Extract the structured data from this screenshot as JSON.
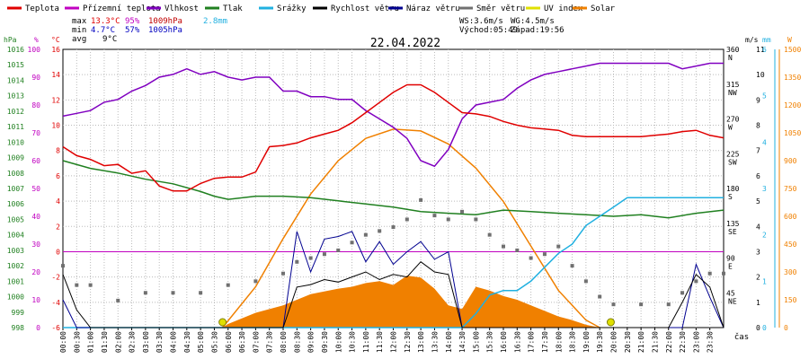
{
  "chart_data": {
    "type": "line",
    "title": "22.04.2022",
    "xlabel": "čas",
    "x_ticks": [
      "00:00",
      "00:30",
      "01:00",
      "01:30",
      "02:00",
      "02:30",
      "03:00",
      "03:30",
      "04:00",
      "04:30",
      "05:00",
      "05:30",
      "06:00",
      "06:30",
      "07:00",
      "07:30",
      "08:00",
      "08:30",
      "09:00",
      "09:30",
      "10:00",
      "10:30",
      "11:00",
      "11:30",
      "12:00",
      "12:30",
      "13:00",
      "13:30",
      "14:00",
      "14:30",
      "15:00",
      "15:30",
      "16:00",
      "16:30",
      "17:00",
      "17:30",
      "18:00",
      "18:30",
      "19:00",
      "19:30",
      "20:00",
      "20:30",
      "21:00",
      "21:30",
      "22:00",
      "22:30",
      "23:00",
      "23:30"
    ],
    "legend": [
      {
        "name": "Teplota",
        "color": "#e00000"
      },
      {
        "name": "Přízemní teplota",
        "color": "#c000c0"
      },
      {
        "name": "Vlhkost",
        "color": "#8000c0"
      },
      {
        "name": "Tlak",
        "color": "#208020"
      },
      {
        "name": "Srážky",
        "color": "#20b0e0"
      },
      {
        "name": "Rychlost větru",
        "color": "#000000"
      },
      {
        "name": "Náraz větru",
        "color": "#000090"
      },
      {
        "name": "Směr větru",
        "color": "#707070"
      },
      {
        "name": "UV index",
        "color": "#e0e000"
      },
      {
        "name": "Solar",
        "color": "#f08000"
      }
    ],
    "stats": {
      "max_label": "max",
      "min_label": "min",
      "avg_label": "avg",
      "temp_max": "13.3°C",
      "hum_max": "95%",
      "press_max": "1009hPa",
      "rain": "2.8mm",
      "temp_min": "4.7°C",
      "hum_min": "57%",
      "press_min": "1005hPa",
      "temp_avg": "9°C",
      "ws": "WS:3.6m/s",
      "wg": "WG:4.5m/s",
      "sunrise": "Východ:05:49",
      "sunset": "Západ:19:56"
    },
    "axes": {
      "hpa": {
        "unit": "hPa",
        "color": "#208020",
        "ticks": [
          1016,
          1015,
          1014,
          1013,
          1012,
          1011,
          1010,
          1009,
          1008,
          1007,
          1006,
          1005,
          1004,
          1003,
          1002,
          1001,
          1000,
          999,
          998
        ]
      },
      "pct": {
        "unit": "%",
        "color": "#c000c0",
        "ticks": [
          100,
          90,
          80,
          70,
          60,
          50,
          40,
          30,
          20,
          10,
          0
        ]
      },
      "temp": {
        "unit": "°C",
        "color": "#e00000",
        "ticks": [
          16,
          14,
          12,
          10,
          8,
          6,
          4,
          2,
          0,
          -2,
          -4,
          -6
        ]
      },
      "dir": {
        "ticks": [
          "360",
          "N",
          "315",
          "NW",
          "270",
          "W",
          "225",
          "SW",
          "180",
          "S",
          "135",
          "SE",
          "90",
          "E",
          "45",
          "NE"
        ]
      },
      "ms": {
        "unit": "m/s",
        "ticks": [
          11,
          10,
          9,
          8,
          7,
          6,
          5,
          4,
          3,
          2,
          1,
          0
        ]
      },
      "mm": {
        "unit": "mm",
        "color": "#20b0e0",
        "ticks": [
          6,
          5,
          4,
          3,
          2,
          1,
          0
        ]
      },
      "w": {
        "unit": "W",
        "color": "#f08000",
        "ticks": [
          1500,
          1350,
          1200,
          1050,
          900,
          750,
          600,
          450,
          300,
          150,
          0
        ]
      }
    },
    "series": {
      "temperature_c": [
        [
          0,
          8.3
        ],
        [
          0.5,
          7.6
        ],
        [
          1,
          7.3
        ],
        [
          1.5,
          6.8
        ],
        [
          2,
          6.9
        ],
        [
          2.5,
          6.2
        ],
        [
          3,
          6.4
        ],
        [
          3.5,
          5.2
        ],
        [
          4,
          4.8
        ],
        [
          4.5,
          4.8
        ],
        [
          5,
          5.4
        ],
        [
          5.5,
          5.8
        ],
        [
          6,
          5.9
        ],
        [
          6.5,
          5.9
        ],
        [
          7,
          6.3
        ],
        [
          7.5,
          8.3
        ],
        [
          8,
          8.4
        ],
        [
          8.5,
          8.6
        ],
        [
          9,
          9.0
        ],
        [
          9.5,
          9.3
        ],
        [
          10,
          9.6
        ],
        [
          10.5,
          10.2
        ],
        [
          11,
          11.0
        ],
        [
          11.5,
          11.8
        ],
        [
          12,
          12.6
        ],
        [
          12.5,
          13.2
        ],
        [
          13,
          13.2
        ],
        [
          13.5,
          12.6
        ],
        [
          14,
          11.8
        ],
        [
          14.5,
          11.0
        ],
        [
          15,
          10.9
        ],
        [
          15.5,
          10.7
        ],
        [
          16,
          10.3
        ],
        [
          16.5,
          10.0
        ],
        [
          17,
          9.8
        ],
        [
          17.5,
          9.7
        ],
        [
          18,
          9.6
        ],
        [
          18.5,
          9.2
        ],
        [
          19,
          9.1
        ],
        [
          19.5,
          9.1
        ],
        [
          20,
          9.1
        ],
        [
          20.5,
          9.1
        ],
        [
          21,
          9.1
        ],
        [
          21.5,
          9.2
        ],
        [
          22,
          9.3
        ],
        [
          22.5,
          9.5
        ],
        [
          23,
          9.6
        ],
        [
          23.5,
          9.2
        ],
        [
          24,
          9.0
        ]
      ],
      "humidity_pct": [
        [
          0,
          76
        ],
        [
          0.5,
          77
        ],
        [
          1,
          78
        ],
        [
          1.5,
          81
        ],
        [
          2,
          82
        ],
        [
          2.5,
          85
        ],
        [
          3,
          87
        ],
        [
          3.5,
          90
        ],
        [
          4,
          91
        ],
        [
          4.5,
          93
        ],
        [
          5,
          91
        ],
        [
          5.5,
          92
        ],
        [
          6,
          90
        ],
        [
          6.5,
          89
        ],
        [
          7,
          90
        ],
        [
          7.5,
          90
        ],
        [
          8,
          85
        ],
        [
          8.5,
          85
        ],
        [
          9,
          83
        ],
        [
          9.5,
          83
        ],
        [
          10,
          82
        ],
        [
          10.5,
          82
        ],
        [
          11,
          78
        ],
        [
          11.5,
          75
        ],
        [
          12,
          72
        ],
        [
          12.5,
          68
        ],
        [
          13,
          60
        ],
        [
          13.5,
          58
        ],
        [
          14,
          64
        ],
        [
          14.5,
          75
        ],
        [
          15,
          80
        ],
        [
          15.5,
          81
        ],
        [
          16,
          82
        ],
        [
          16.5,
          86
        ],
        [
          17,
          89
        ],
        [
          17.5,
          91
        ],
        [
          18,
          92
        ],
        [
          18.5,
          93
        ],
        [
          19,
          94
        ],
        [
          19.5,
          95
        ],
        [
          20,
          95
        ],
        [
          20.5,
          95
        ],
        [
          21,
          95
        ],
        [
          21.5,
          95
        ],
        [
          22,
          95
        ],
        [
          22.5,
          93
        ],
        [
          23,
          94
        ],
        [
          23.5,
          95
        ],
        [
          24,
          95
        ]
      ],
      "pressure_hpa": [
        [
          0,
          1008.8
        ],
        [
          1,
          1008.3
        ],
        [
          2,
          1008.0
        ],
        [
          3,
          1007.6
        ],
        [
          4,
          1007.3
        ],
        [
          5,
          1006.8
        ],
        [
          5.5,
          1006.5
        ],
        [
          6,
          1006.3
        ],
        [
          7,
          1006.5
        ],
        [
          8,
          1006.5
        ],
        [
          9,
          1006.4
        ],
        [
          10,
          1006.2
        ],
        [
          11,
          1006.0
        ],
        [
          12,
          1005.8
        ],
        [
          13,
          1005.5
        ],
        [
          14,
          1005.4
        ],
        [
          15,
          1005.3
        ],
        [
          16,
          1005.6
        ],
        [
          17,
          1005.5
        ],
        [
          18,
          1005.4
        ],
        [
          19,
          1005.3
        ],
        [
          20,
          1005.2
        ],
        [
          21,
          1005.3
        ],
        [
          22,
          1005.1
        ],
        [
          23,
          1005.4
        ],
        [
          24,
          1005.6
        ]
      ],
      "rain_mm": [
        [
          0,
          0
        ],
        [
          14.5,
          0
        ],
        [
          15,
          0.3
        ],
        [
          15.5,
          0.7
        ],
        [
          16,
          0.8
        ],
        [
          16.5,
          0.8
        ],
        [
          17,
          1.0
        ],
        [
          17.5,
          1.3
        ],
        [
          18,
          1.6
        ],
        [
          18.5,
          1.8
        ],
        [
          19,
          2.2
        ],
        [
          19.5,
          2.4
        ],
        [
          20,
          2.6
        ],
        [
          20.5,
          2.8
        ],
        [
          24,
          2.8
        ]
      ],
      "wind_speed_ms": [
        [
          0,
          2.1
        ],
        [
          0.5,
          0.7
        ],
        [
          1,
          0
        ],
        [
          8,
          0
        ],
        [
          8.5,
          1.6
        ],
        [
          9,
          1.7
        ],
        [
          9.5,
          1.9
        ],
        [
          10,
          1.8
        ],
        [
          10.5,
          2.0
        ],
        [
          11,
          2.2
        ],
        [
          11.5,
          1.9
        ],
        [
          12,
          2.1
        ],
        [
          12.5,
          2.0
        ],
        [
          13,
          2.6
        ],
        [
          13.5,
          2.2
        ],
        [
          14,
          2.1
        ],
        [
          14.5,
          0
        ],
        [
          22,
          0
        ],
        [
          22.5,
          1.0
        ],
        [
          23,
          2.1
        ],
        [
          23.5,
          1.6
        ],
        [
          24,
          0
        ]
      ],
      "wind_gust_ms": [
        [
          0,
          1.1
        ],
        [
          0.5,
          0
        ],
        [
          8,
          0
        ],
        [
          8.5,
          3.8
        ],
        [
          9,
          2.2
        ],
        [
          9.5,
          3.5
        ],
        [
          10,
          3.6
        ],
        [
          10.5,
          3.8
        ],
        [
          11,
          2.6
        ],
        [
          11.5,
          3.4
        ],
        [
          12,
          2.5
        ],
        [
          12.5,
          3.0
        ],
        [
          13,
          3.4
        ],
        [
          13.5,
          2.7
        ],
        [
          14,
          3.0
        ],
        [
          14.5,
          0
        ],
        [
          22.5,
          0
        ],
        [
          23,
          2.5
        ],
        [
          23.5,
          1.2
        ],
        [
          24,
          0
        ]
      ],
      "wind_dir_deg": [
        [
          0,
          80
        ],
        [
          0.5,
          55
        ],
        [
          1,
          55
        ],
        [
          2,
          35
        ],
        [
          3,
          45
        ],
        [
          4,
          45
        ],
        [
          5,
          45
        ],
        [
          6,
          55
        ],
        [
          7,
          60
        ],
        [
          8,
          70
        ],
        [
          8.5,
          85
        ],
        [
          9,
          90
        ],
        [
          9.5,
          95
        ],
        [
          10,
          100
        ],
        [
          10.5,
          110
        ],
        [
          11,
          120
        ],
        [
          11.5,
          125
        ],
        [
          12,
          130
        ],
        [
          12.5,
          140
        ],
        [
          13,
          165
        ],
        [
          13.5,
          145
        ],
        [
          14,
          140
        ],
        [
          14.5,
          150
        ],
        [
          15,
          140
        ],
        [
          15.5,
          120
        ],
        [
          16,
          105
        ],
        [
          16.5,
          100
        ],
        [
          17,
          90
        ],
        [
          17.5,
          95
        ],
        [
          18,
          105
        ],
        [
          18.5,
          80
        ],
        [
          19,
          60
        ],
        [
          19.5,
          40
        ],
        [
          20,
          30
        ],
        [
          21,
          30
        ],
        [
          22,
          30
        ],
        [
          22.5,
          45
        ],
        [
          23,
          60
        ],
        [
          23.5,
          70
        ],
        [
          24,
          70
        ]
      ],
      "solar_w": [
        [
          0,
          0
        ],
        [
          5.8,
          0
        ],
        [
          6,
          20
        ],
        [
          7,
          80
        ],
        [
          8,
          120
        ],
        [
          9,
          180
        ],
        [
          10,
          210
        ],
        [
          10.5,
          220
        ],
        [
          11,
          240
        ],
        [
          11.5,
          250
        ],
        [
          12,
          230
        ],
        [
          12.5,
          280
        ],
        [
          13,
          270
        ],
        [
          13.5,
          210
        ],
        [
          14,
          120
        ],
        [
          14.5,
          100
        ],
        [
          15,
          220
        ],
        [
          15.5,
          200
        ],
        [
          16,
          170
        ],
        [
          16.5,
          150
        ],
        [
          17,
          120
        ],
        [
          17.5,
          90
        ],
        [
          18,
          60
        ],
        [
          18.5,
          40
        ],
        [
          19,
          15
        ],
        [
          19.5,
          0
        ],
        [
          24,
          0
        ]
      ],
      "solar_theory_w": [
        [
          5.8,
          0
        ],
        [
          7,
          220
        ],
        [
          8,
          480
        ],
        [
          9,
          720
        ],
        [
          10,
          900
        ],
        [
          11,
          1020
        ],
        [
          12,
          1070
        ],
        [
          13,
          1060
        ],
        [
          14,
          990
        ],
        [
          15,
          860
        ],
        [
          16,
          680
        ],
        [
          17,
          440
        ],
        [
          18,
          200
        ],
        [
          19,
          40
        ],
        [
          19.5,
          0
        ]
      ],
      "uv_index": [
        [
          5.8,
          0
        ],
        [
          19.9,
          0
        ]
      ]
    }
  }
}
